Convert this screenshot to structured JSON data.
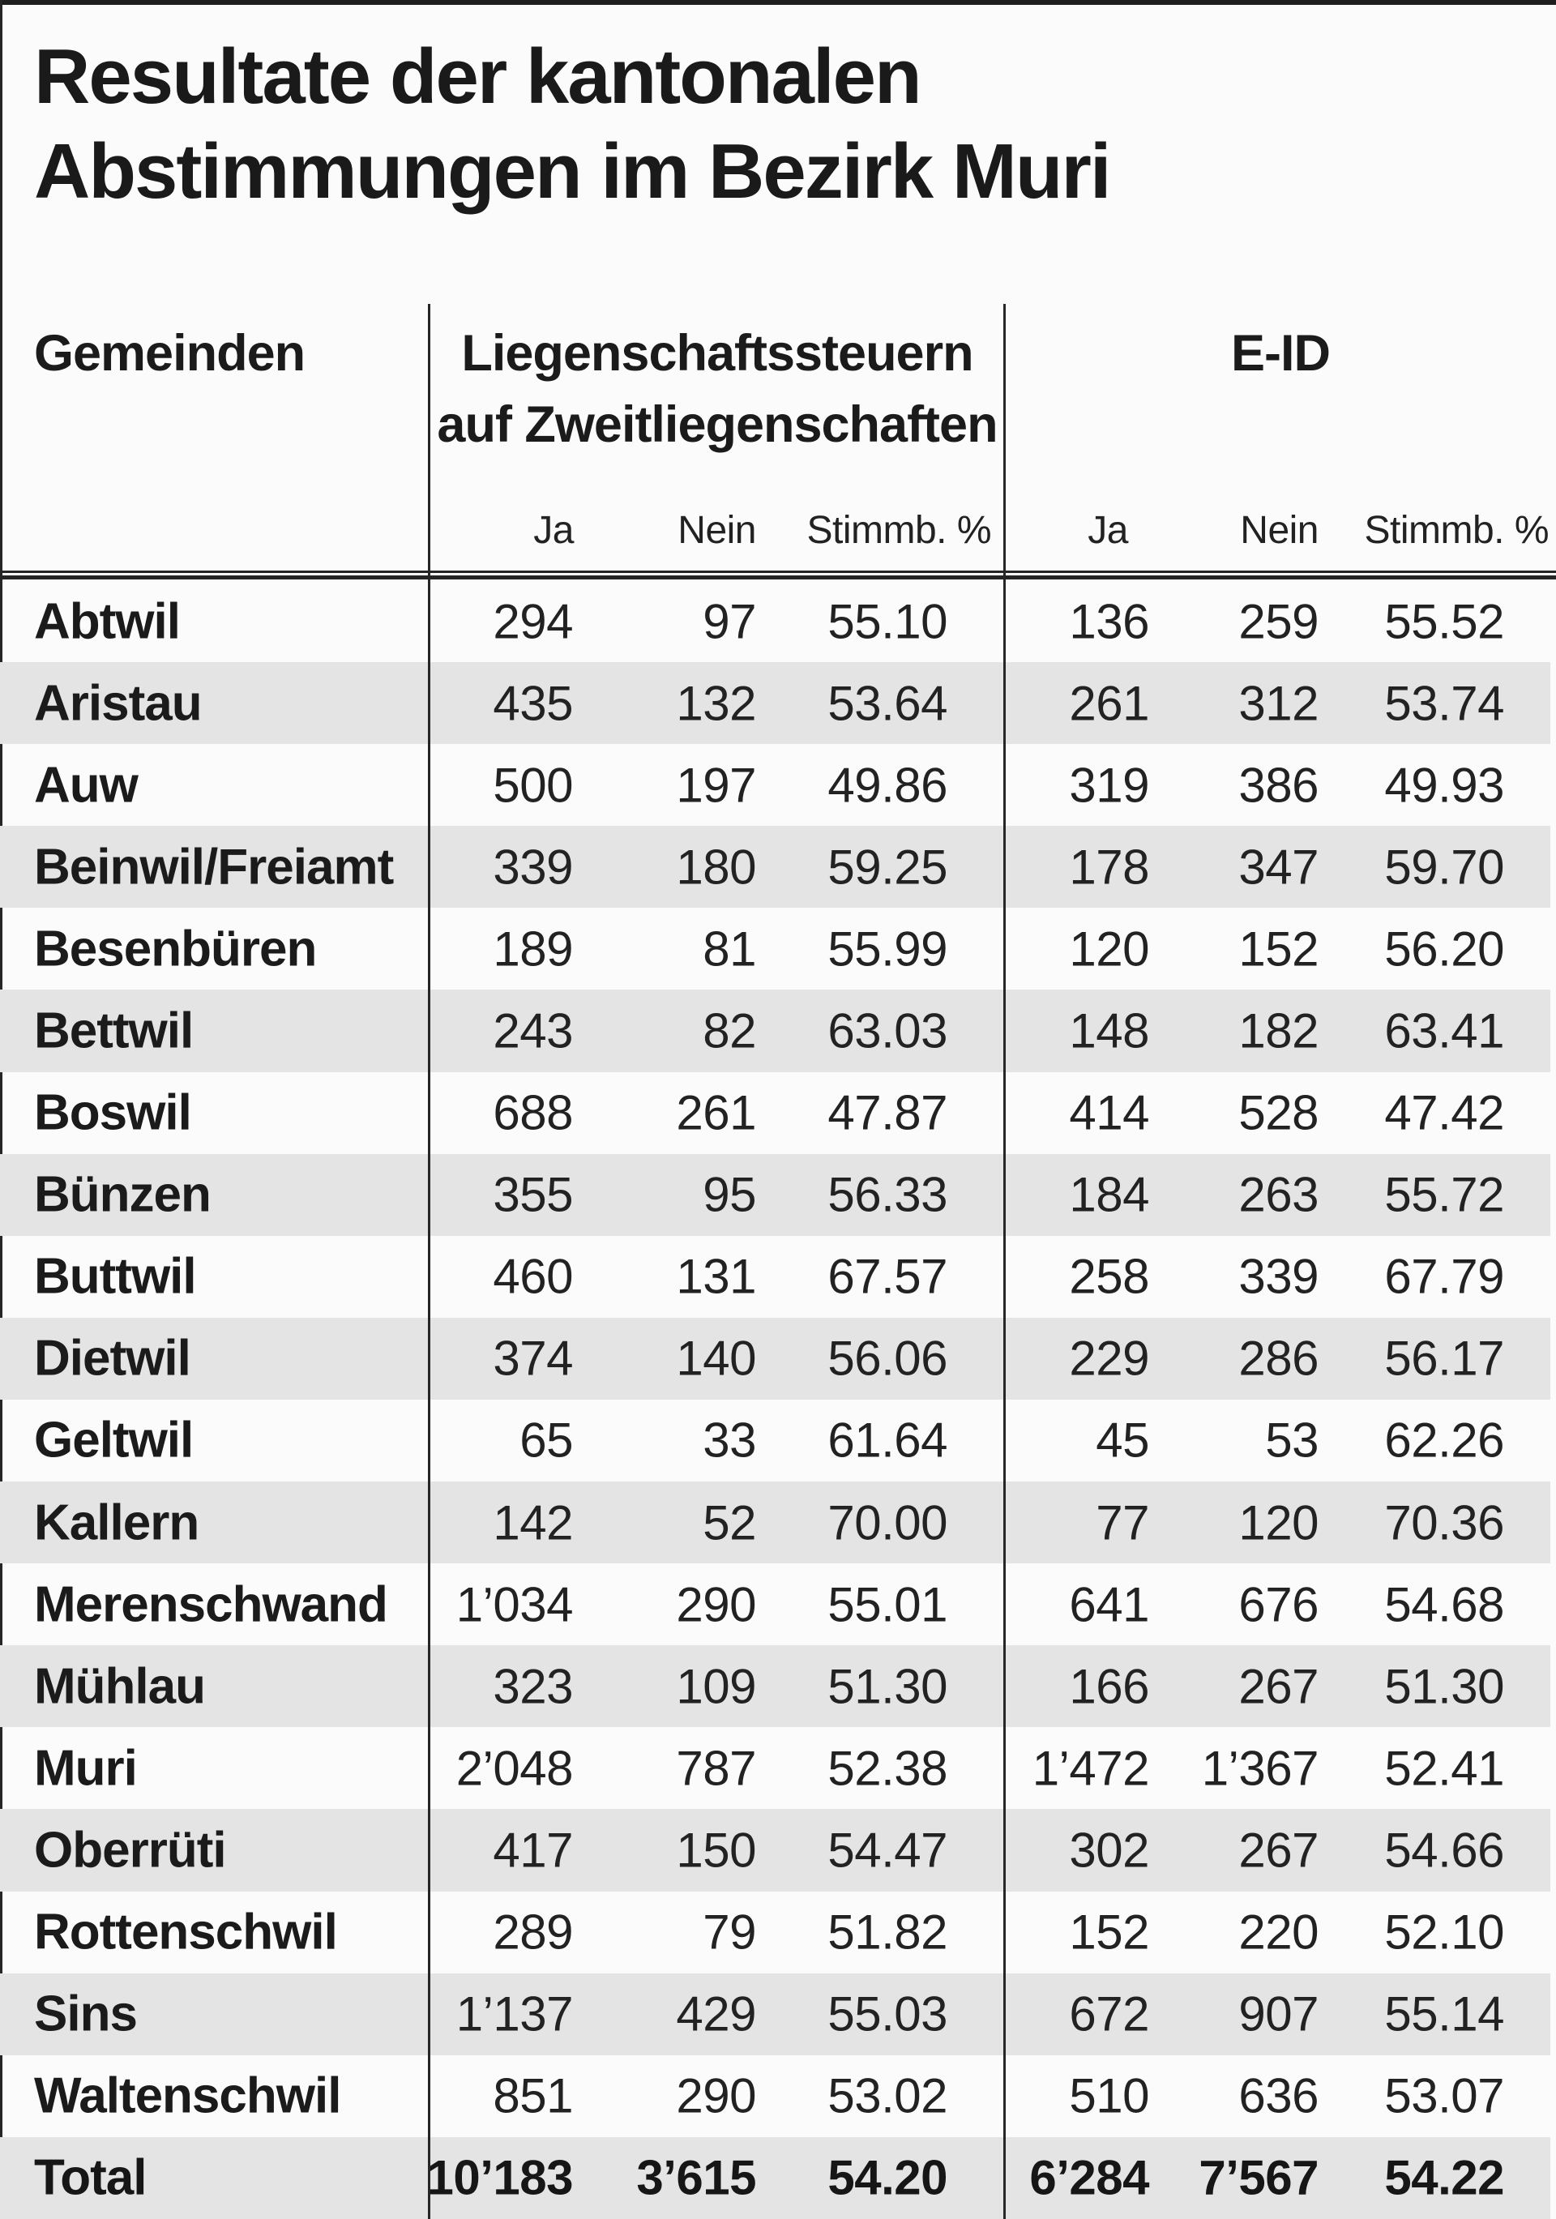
{
  "title": {
    "line1": "Resultate der kantonalen",
    "line2": "Abstimmungen im Bezirk Muri"
  },
  "table": {
    "group_headers": {
      "municipalities": "Gemeinden",
      "measure1_line1": "Liegenschaftssteuern",
      "measure1_line2": "auf Zweitliegenschaften",
      "measure2": "E-ID"
    },
    "sub_headers": {
      "ja1": "Ja",
      "nein1": "Nein",
      "stimmb1": "Stimmb. %",
      "ja2": "Ja",
      "nein2": "Nein",
      "stimmb2": "Stimmb. %"
    },
    "rows": [
      {
        "name": "Abtwil",
        "values": [
          "294",
          "97",
          "55.10",
          "136",
          "259",
          "55.52"
        ]
      },
      {
        "name": "Aristau",
        "values": [
          "435",
          "132",
          "53.64",
          "261",
          "312",
          "53.74"
        ]
      },
      {
        "name": "Auw",
        "values": [
          "500",
          "197",
          "49.86",
          "319",
          "386",
          "49.93"
        ]
      },
      {
        "name": "Beinwil/Freiamt",
        "values": [
          "339",
          "180",
          "59.25",
          "178",
          "347",
          "59.70"
        ]
      },
      {
        "name": "Besenbüren",
        "values": [
          "189",
          "81",
          "55.99",
          "120",
          "152",
          "56.20"
        ]
      },
      {
        "name": "Bettwil",
        "values": [
          "243",
          "82",
          "63.03",
          "148",
          "182",
          "63.41"
        ]
      },
      {
        "name": "Boswil",
        "values": [
          "688",
          "261",
          "47.87",
          "414",
          "528",
          "47.42"
        ]
      },
      {
        "name": "Bünzen",
        "values": [
          "355",
          "95",
          "56.33",
          "184",
          "263",
          "55.72"
        ]
      },
      {
        "name": "Buttwil",
        "values": [
          "460",
          "131",
          "67.57",
          "258",
          "339",
          "67.79"
        ]
      },
      {
        "name": "Dietwil",
        "values": [
          "374",
          "140",
          "56.06",
          "229",
          "286",
          "56.17"
        ]
      },
      {
        "name": "Geltwil",
        "values": [
          "65",
          "33",
          "61.64",
          "45",
          "53",
          "62.26"
        ]
      },
      {
        "name": "Kallern",
        "values": [
          "142",
          "52",
          "70.00",
          "77",
          "120",
          "70.36"
        ]
      },
      {
        "name": "Merenschwand",
        "values": [
          "1’034",
          "290",
          "55.01",
          "641",
          "676",
          "54.68"
        ]
      },
      {
        "name": "Mühlau",
        "values": [
          "323",
          "109",
          "51.30",
          "166",
          "267",
          "51.30"
        ]
      },
      {
        "name": "Muri",
        "values": [
          "2’048",
          "787",
          "52.38",
          "1’472",
          "1’367",
          "52.41"
        ]
      },
      {
        "name": "Oberrüti",
        "values": [
          "417",
          "150",
          "54.47",
          "302",
          "267",
          "54.66"
        ]
      },
      {
        "name": "Rottenschwil",
        "values": [
          "289",
          "79",
          "51.82",
          "152",
          "220",
          "52.10"
        ]
      },
      {
        "name": "Sins",
        "values": [
          "1’137",
          "429",
          "55.03",
          "672",
          "907",
          "55.14"
        ]
      },
      {
        "name": "Waltenschwil",
        "values": [
          "851",
          "290",
          "53.02",
          "510",
          "636",
          "53.07"
        ]
      }
    ],
    "total": {
      "name": "Total",
      "values": [
        "10’183",
        "3’615",
        "54.20",
        "6’284",
        "7’567",
        "54.22"
      ]
    }
  },
  "colors": {
    "page_background": "#fbfbfb",
    "stripe_gray": "#e4e4e4",
    "rule_dark": "#262626",
    "top_bar": "#1e1e1e",
    "text": "#1d1d1d"
  }
}
